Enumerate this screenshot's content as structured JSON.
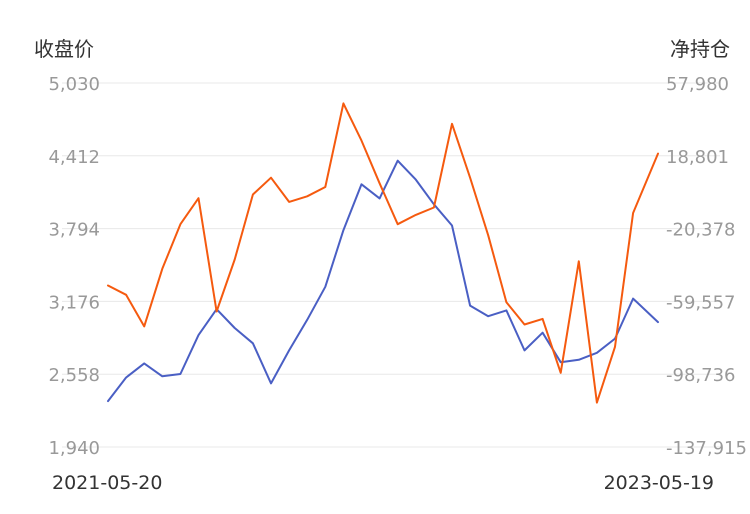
{
  "chart_data": {
    "type": "line",
    "title": "",
    "left_axis": {
      "label": "收盘价",
      "ticks": [
        "5,030",
        "4,412",
        "3,794",
        "3,176",
        "2,558",
        "1,940"
      ],
      "range": [
        1940,
        5030
      ]
    },
    "right_axis": {
      "label": "净持仓",
      "ticks": [
        "57,980",
        "18,801",
        "-20,378",
        "-59,557",
        "-98,736",
        "-137,915"
      ],
      "range": [
        -137915,
        57980
      ]
    },
    "x_labels": [
      "2021-05-20",
      "2023-05-19"
    ],
    "x_range": [
      "2021-05-20",
      "2023-05-19"
    ],
    "grid": true,
    "legend": "none",
    "colors": {
      "close": "#4a5fc4",
      "net": "#f55a0f",
      "grid": "#e8e8e8",
      "tick_text": "#999999",
      "axis_title": "#333333",
      "date_text": "#333333"
    },
    "series": [
      {
        "key": "close",
        "axis": "left",
        "x": [
          "2021-05-20",
          "2021-06-13",
          "2021-07-07",
          "2021-07-31",
          "2021-08-24",
          "2021-09-17",
          "2021-10-11",
          "2021-11-04",
          "2021-11-28",
          "2021-12-22",
          "2022-01-15",
          "2022-02-08",
          "2022-03-04",
          "2022-03-28",
          "2022-04-21",
          "2022-05-15",
          "2022-06-08",
          "2022-07-02",
          "2022-07-26",
          "2022-08-19",
          "2022-09-12",
          "2022-10-06",
          "2022-10-30",
          "2022-11-23",
          "2022-12-17",
          "2023-01-10",
          "2023-02-03",
          "2023-02-27",
          "2023-03-23",
          "2023-04-16",
          "2023-05-19"
        ],
        "values": [
          2330,
          2530,
          2650,
          2540,
          2560,
          2890,
          3110,
          2950,
          2820,
          2480,
          2760,
          3020,
          3300,
          3780,
          4170,
          4050,
          4370,
          4210,
          4000,
          3820,
          3140,
          3050,
          3100,
          2760,
          2910,
          2660,
          2680,
          2740,
          2860,
          3200,
          3000
        ]
      },
      {
        "key": "net",
        "axis": "right",
        "x": [
          "2021-05-20",
          "2021-06-13",
          "2021-07-07",
          "2021-07-31",
          "2021-08-24",
          "2021-09-17",
          "2021-10-11",
          "2021-11-04",
          "2021-11-28",
          "2021-12-22",
          "2022-01-15",
          "2022-02-08",
          "2022-03-04",
          "2022-03-28",
          "2022-04-21",
          "2022-05-15",
          "2022-06-08",
          "2022-07-02",
          "2022-07-26",
          "2022-08-19",
          "2022-09-12",
          "2022-10-06",
          "2022-10-30",
          "2022-11-23",
          "2022-12-17",
          "2023-01-10",
          "2023-02-03",
          "2023-02-27",
          "2023-03-23",
          "2023-04-16",
          "2023-05-19"
        ],
        "values": [
          -51000,
          -56000,
          -73000,
          -42000,
          -18000,
          -4000,
          -65000,
          -37000,
          -2000,
          7000,
          -6000,
          -3000,
          2000,
          47000,
          27000,
          4000,
          -18000,
          -13000,
          -9000,
          36000,
          7000,
          -24000,
          -60000,
          -72000,
          -69000,
          -98000,
          -38000,
          -114000,
          -84000,
          -12000,
          20000
        ]
      }
    ]
  }
}
